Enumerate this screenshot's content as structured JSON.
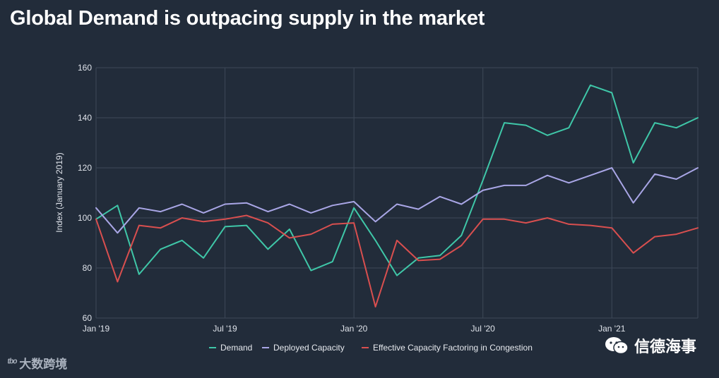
{
  "title": "Global Demand is outpacing supply in the market",
  "watermark_left": "大数跨境",
  "watermark_left_logo": "ᵗᵇᵒ",
  "watermark_right": "信德海事",
  "colors": {
    "background": "#222c3a",
    "grid": "#3d4858",
    "demand": "#3fc7a8",
    "deployed": "#a9a6e6",
    "effective": "#d94f4f"
  },
  "chart_data": {
    "type": "line",
    "title": "Global Demand is outpacing supply in the market",
    "xlabel": "",
    "ylabel": "Index (January 2019)",
    "ylim": [
      60,
      160
    ],
    "yticks": [
      60,
      80,
      100,
      120,
      140,
      160
    ],
    "x_ticks": [
      {
        "index": 0,
        "label": "Jan '19"
      },
      {
        "index": 6,
        "label": "Jul '19"
      },
      {
        "index": 12,
        "label": "Jan '20"
      },
      {
        "index": 18,
        "label": "Jul '20"
      },
      {
        "index": 24,
        "label": "Jan '21"
      }
    ],
    "grid": true,
    "legend_position": "bottom",
    "series": [
      {
        "name": "Demand",
        "color": "#3fc7a8",
        "values": [
          99.5,
          105,
          77.5,
          87.5,
          91,
          84,
          96.5,
          97,
          87.5,
          95.5,
          79,
          82.5,
          104,
          91,
          77,
          84,
          85,
          93,
          115,
          138,
          137,
          133,
          136,
          153,
          150,
          122,
          138,
          136,
          140
        ]
      },
      {
        "name": "Deployed Capacity",
        "color": "#a9a6e6",
        "values": [
          104,
          94,
          104,
          102.5,
          105.5,
          102,
          105.5,
          106,
          102.5,
          105.5,
          102,
          105,
          106.5,
          98.5,
          105.5,
          103.5,
          108.5,
          105.5,
          111,
          113,
          113,
          117,
          114,
          117,
          120,
          106,
          117.5,
          115.5,
          120
        ]
      },
      {
        "name": "Effective Capacity Factoring in Congestion",
        "color": "#d94f4f",
        "values": [
          99.5,
          74.5,
          97,
          96,
          100,
          98.5,
          99.5,
          101,
          98,
          92,
          93.5,
          97.5,
          98,
          64.5,
          91,
          83,
          83.5,
          89,
          99.5,
          99.5,
          98,
          100,
          97.5,
          97,
          96,
          86,
          92.5,
          93.5,
          96
        ]
      }
    ]
  }
}
